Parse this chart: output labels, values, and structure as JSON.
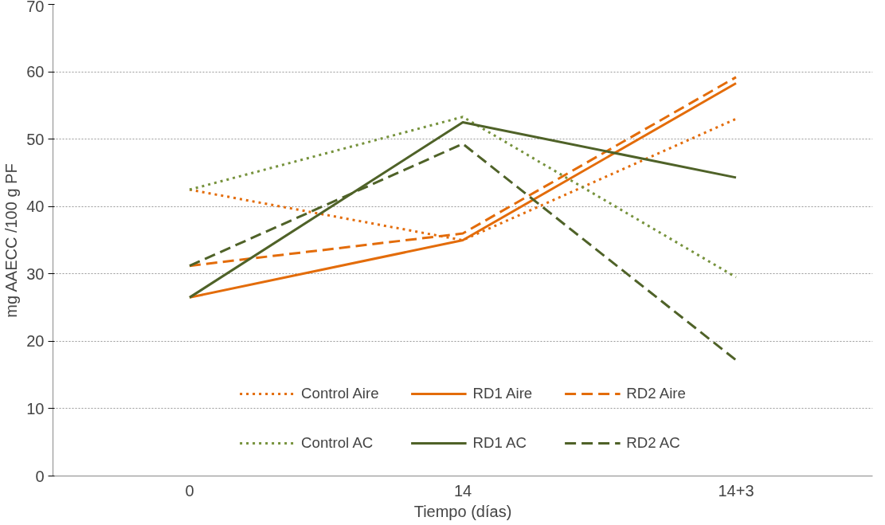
{
  "chart_data": {
    "type": "line",
    "xlabel": "Tiempo (días)",
    "ylabel": "mg AAECC /100 g PF",
    "categories": [
      "0",
      "14",
      "14+3"
    ],
    "ylim": [
      0,
      70
    ],
    "yticks": [
      0,
      10,
      20,
      30,
      40,
      50,
      60,
      70
    ],
    "grid": "y",
    "legend": "bottom",
    "series": [
      {
        "name": "Control Aire",
        "color": "#e36c0a",
        "line_style": "dotted",
        "values": [
          42.5,
          35,
          53
        ]
      },
      {
        "name": "RD1 Aire",
        "color": "#e36c0a",
        "line_style": "solid",
        "values": [
          26.5,
          35,
          58.3
        ]
      },
      {
        "name": "RD2 Aire",
        "color": "#e36c0a",
        "line_style": "dashed",
        "values": [
          31.2,
          36,
          59.2
        ]
      },
      {
        "name": "Control AC",
        "color": "#76923c",
        "line_style": "dotted",
        "values": [
          42.5,
          53.3,
          29.5
        ]
      },
      {
        "name": "RD1 AC",
        "color": "#4f6228",
        "line_style": "solid",
        "values": [
          26.5,
          52.5,
          44.3
        ]
      },
      {
        "name": "RD2 AC",
        "color": "#4f6228",
        "line_style": "dashed",
        "values": [
          31.2,
          49.3,
          17.2
        ]
      }
    ]
  }
}
